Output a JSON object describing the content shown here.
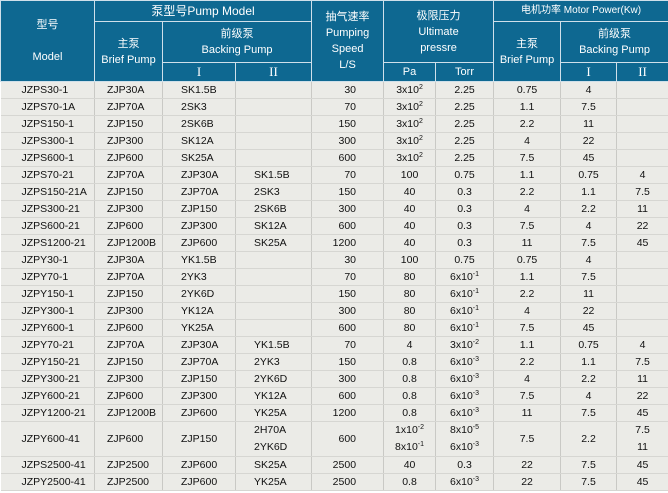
{
  "header": {
    "model_cn": "型号",
    "model_en": "Model",
    "pump_model": "泵型号Pump Model",
    "main_cn": "主泵",
    "main_en": "Brief Pump",
    "backing_cn": "前级泵",
    "backing_en": "Backing Pump",
    "roman1": "I",
    "roman2": "II",
    "speed_cn": "抽气速率",
    "speed_en1": "Pumping",
    "speed_en2": "Speed",
    "speed_unit": "L/S",
    "pressure_cn": "极限压力",
    "pressure_en1": "Ultimate",
    "pressure_en2": "pressre",
    "pa": "Pa",
    "torr": "Torr",
    "motor": "电机功率 Motor Power(Kw)",
    "motor_main_cn": "主泵",
    "motor_main_en": "Brief Pump",
    "motor_backing_cn": "前级泵",
    "motor_backing_en": "Backing Pump",
    "motor_roman1": "I",
    "motor_roman2": "II"
  },
  "colors": {
    "header_bg": "#0e6891",
    "body_bg": "#ebebe7"
  },
  "rows": [
    [
      "JZPS30-1",
      "ZJP30A",
      "SK1.5B",
      "",
      "30",
      {
        "m": "3x10",
        "e": "2"
      },
      "2.25",
      "0.75",
      "4",
      ""
    ],
    [
      "JZPS70-1A",
      "ZJP70A",
      "2SK3",
      "",
      "70",
      {
        "m": "3x10",
        "e": "2"
      },
      "2.25",
      "1.1",
      "7.5",
      ""
    ],
    [
      "JZPS150-1",
      "ZJP150",
      "2SK6B",
      "",
      "150",
      {
        "m": "3x10",
        "e": "2"
      },
      "2.25",
      "2.2",
      "11",
      ""
    ],
    [
      "JZPS300-1",
      "ZJP300",
      "SK12A",
      "",
      "300",
      {
        "m": "3x10",
        "e": "2"
      },
      "2.25",
      "4",
      "22",
      ""
    ],
    [
      "JZPS600-1",
      "ZJP600",
      "SK25A",
      "",
      "600",
      {
        "m": "3x10",
        "e": "2"
      },
      "2.25",
      "7.5",
      "45",
      ""
    ],
    [
      "JZPS70-21",
      "ZJP70A",
      "ZJP30A",
      "SK1.5B",
      "70",
      "100",
      "0.75",
      "1.1",
      "0.75",
      "4"
    ],
    [
      "JZPS150-21A",
      "ZJP150",
      "ZJP70A",
      "2SK3",
      "150",
      "40",
      "0.3",
      "2.2",
      "1.1",
      "7.5"
    ],
    [
      "JZPS300-21",
      "ZJP300",
      "ZJP150",
      "2SK6B",
      "300",
      "40",
      "0.3",
      "4",
      "2.2",
      "11"
    ],
    [
      "JZPS600-21",
      "ZJP600",
      "ZJP300",
      "SK12A",
      "600",
      "40",
      "0.3",
      "7.5",
      "4",
      "22"
    ],
    [
      "JZPS1200-21",
      "ZJP1200B",
      "ZJP600",
      "SK25A",
      "1200",
      "40",
      "0.3",
      "11",
      "7.5",
      "45"
    ],
    [
      "JZPY30-1",
      "ZJP30A",
      "YK1.5B",
      "",
      "30",
      "100",
      "0.75",
      "0.75",
      "4",
      ""
    ],
    [
      "JZPY70-1",
      "ZJP70A",
      "2YK3",
      "",
      "70",
      "80",
      {
        "m": "6x10",
        "e": "-1"
      },
      "1.1",
      "7.5",
      ""
    ],
    [
      "JZPY150-1",
      "ZJP150",
      "2YK6D",
      "",
      "150",
      "80",
      {
        "m": "6x10",
        "e": "-1"
      },
      "2.2",
      "11",
      ""
    ],
    [
      "JZPY300-1",
      "ZJP300",
      "YK12A",
      "",
      "300",
      "80",
      {
        "m": "6x10",
        "e": "-1"
      },
      "4",
      "22",
      ""
    ],
    [
      "JZPY600-1",
      "ZJP600",
      "YK25A",
      "",
      "600",
      "80",
      {
        "m": "6x10",
        "e": "-1"
      },
      "7.5",
      "45",
      ""
    ],
    [
      "JZPY70-21",
      "ZJP70A",
      "ZJP30A",
      "YK1.5B",
      "70",
      "4",
      {
        "m": "3x10",
        "e": "-2"
      },
      "1.1",
      "0.75",
      "4"
    ],
    [
      "JZPY150-21",
      "ZJP150",
      "ZJP70A",
      "2YK3",
      "150",
      "0.8",
      {
        "m": "6x10",
        "e": "-3"
      },
      "2.2",
      "1.1",
      "7.5"
    ],
    [
      "JZPY300-21",
      "ZJP300",
      "ZJP150",
      "2YK6D",
      "300",
      "0.8",
      {
        "m": "6x10",
        "e": "-3"
      },
      "4",
      "2.2",
      "11"
    ],
    [
      "JZPY600-21",
      "ZJP600",
      "ZJP300",
      "YK12A",
      "600",
      "0.8",
      {
        "m": "6x10",
        "e": "-3"
      },
      "7.5",
      "4",
      "22"
    ],
    [
      "JZPY1200-21",
      "ZJP1200B",
      "ZJP600",
      "YK25A",
      "1200",
      "0.8",
      {
        "m": "6x10",
        "e": "-3"
      },
      "11",
      "7.5",
      "45"
    ],
    [
      "JZPY600-41",
      "ZJP600",
      "ZJP150",
      [
        "2H70A",
        "2YK6D"
      ],
      "600",
      [
        {
          "m": "1x10",
          "e": "-2"
        },
        {
          "m": "8x10",
          "e": "-1"
        }
      ],
      [
        {
          "m": "8x10",
          "e": "-5"
        },
        {
          "m": "6x10",
          "e": "-3"
        }
      ],
      "7.5",
      "2.2",
      [
        "7.5",
        "11"
      ]
    ],
    [
      "JZPS2500-41",
      "ZJP2500",
      "ZJP600",
      "SK25A",
      "2500",
      "40",
      "0.3",
      "22",
      "7.5",
      "45"
    ],
    [
      "JZPY2500-41",
      "ZJP2500",
      "ZJP600",
      "YK25A",
      "2500",
      "0.8",
      {
        "m": "6x10",
        "e": "-3"
      },
      "22",
      "7.5",
      "45"
    ]
  ]
}
